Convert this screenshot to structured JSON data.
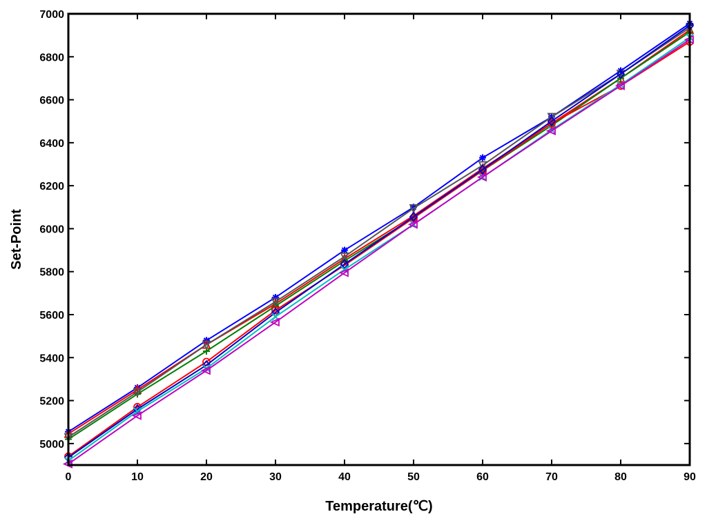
{
  "chart_data": {
    "type": "line",
    "title": "",
    "xlabel": "Temperature(℃)",
    "ylabel": "Set-Point",
    "xlim": [
      0,
      90
    ],
    "ylim": [
      4900,
      7000
    ],
    "xticks": [
      0,
      10,
      20,
      30,
      40,
      50,
      60,
      70,
      80,
      90
    ],
    "yticks": [
      5000,
      5200,
      5400,
      5600,
      5800,
      6000,
      6200,
      6400,
      6600,
      6800,
      7000
    ],
    "grid": false,
    "x": [
      0,
      10,
      20,
      30,
      40,
      50,
      60,
      70,
      80,
      90
    ],
    "series": [
      {
        "color": "#0000ff",
        "marker": "star",
        "values": [
          5055,
          5260,
          5480,
          5680,
          5900,
          6100,
          6330,
          6520,
          6735,
          6955
        ]
      },
      {
        "color": "#ff0000",
        "marker": "triangle-up",
        "values": [
          5045,
          5250,
          5460,
          5650,
          5860,
          6060,
          6280,
          6490,
          6700,
          6925
        ]
      },
      {
        "color": "#008000",
        "marker": "plus",
        "values": [
          5020,
          5230,
          5430,
          5640,
          5850,
          6050,
          6270,
          6480,
          6700,
          6915
        ]
      },
      {
        "color": "#555555",
        "marker": "triangle-down",
        "values": [
          5030,
          5240,
          5460,
          5660,
          5870,
          6095,
          6295,
          6520,
          6720,
          6935
        ]
      },
      {
        "color": "#ff0000",
        "marker": "circle",
        "values": [
          4940,
          5170,
          5380,
          5620,
          5830,
          6050,
          6270,
          6490,
          6665,
          6870
        ]
      },
      {
        "color": "#0000cc",
        "marker": "diamond",
        "values": [
          4935,
          5160,
          5365,
          5610,
          5835,
          6055,
          6275,
          6500,
          6720,
          6945
        ]
      },
      {
        "color": "#00bfbf",
        "marker": "x",
        "values": [
          4920,
          5150,
          5350,
          5590,
          5810,
          6020,
          6240,
          6460,
          6670,
          6890
        ]
      },
      {
        "color": "#c000c0",
        "marker": "triangle-left",
        "values": [
          4905,
          5130,
          5340,
          5565,
          5795,
          6020,
          6240,
          6455,
          6665,
          6880
        ]
      }
    ]
  }
}
